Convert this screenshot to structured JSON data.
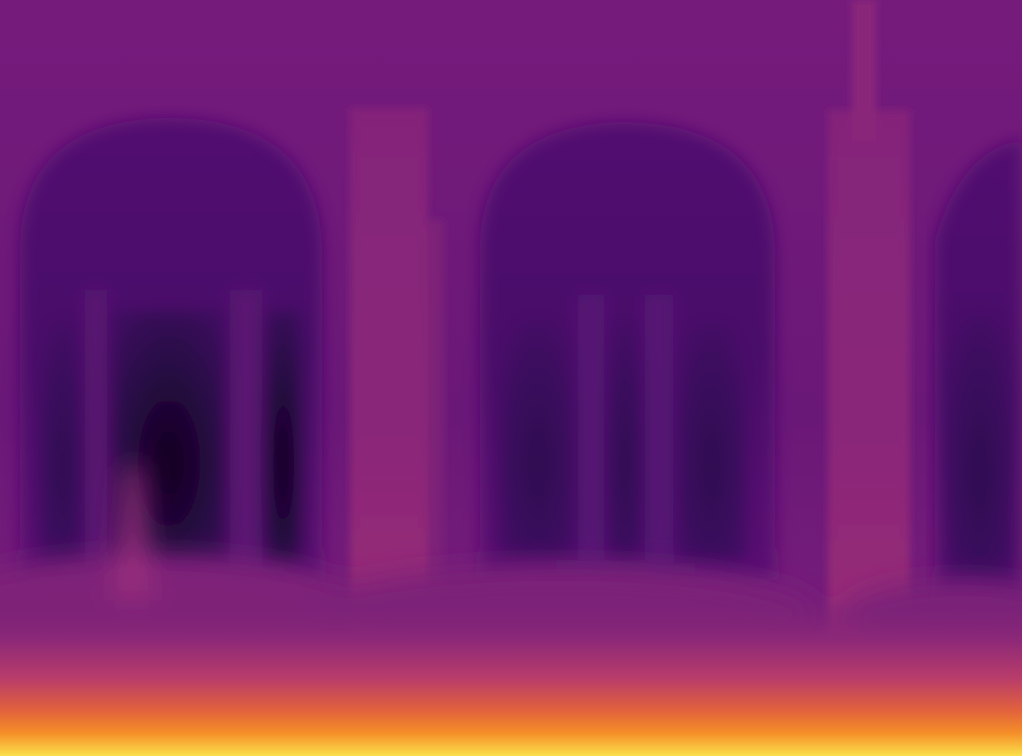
{
  "image": {
    "kind": "depth-map",
    "colormap": "inferno",
    "palette": {
      "far": "#1a0630",
      "deep": "#3a0a5a",
      "mid": "#5c1476",
      "wall": "#6e1c7c",
      "near": "#8a2680",
      "close": "#c8406a",
      "closer": "#f07838",
      "closest": "#fde64a"
    },
    "objects": [
      "left-arched-window",
      "center-arched-window",
      "right-arched-window-partial",
      "left-column",
      "right-column",
      "foreground-ground"
    ]
  }
}
